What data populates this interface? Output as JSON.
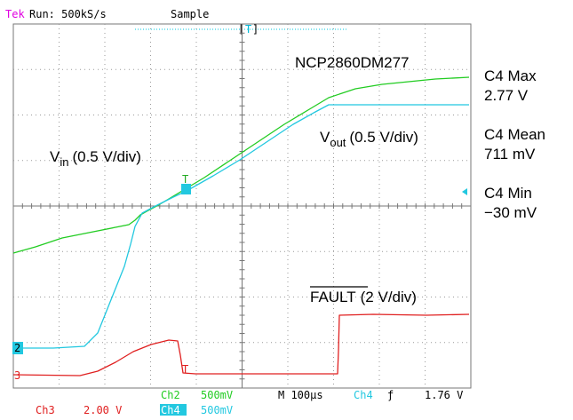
{
  "header": {
    "brand": "Tek",
    "status": "Run: 500kS/s",
    "mode": "Sample",
    "trigger_position": "T"
  },
  "annotations": {
    "device": "NCP2860DM277",
    "vin": {
      "symbol": "V",
      "subscript": "in",
      "scale": "(0.5 V/div)"
    },
    "vout": {
      "symbol": "V",
      "subscript": "out",
      "scale": "(0.5 V/div)"
    },
    "fault": {
      "name": "FAULT",
      "scale": "(2 V/div)"
    }
  },
  "measurements": [
    {
      "label": "C4 Max",
      "value": "2.77 V"
    },
    {
      "label": "C4 Mean",
      "value": "711 mV"
    },
    {
      "label": "C4 Min",
      "value": "−30 mV"
    }
  ],
  "markers": {
    "ch2": "2",
    "ch3": "3",
    "trigger": "T"
  },
  "footer": {
    "ch2": {
      "name": "Ch2",
      "scale": "500mV"
    },
    "ch4": {
      "name": "Ch4",
      "scale": "500mV"
    },
    "ch3": {
      "name": "Ch3",
      "scale": "2.00 V"
    },
    "timebase": "M 100µs",
    "trigger": {
      "source": "Ch4",
      "slope": "ƒ",
      "level": "1.76 V"
    }
  }
}
